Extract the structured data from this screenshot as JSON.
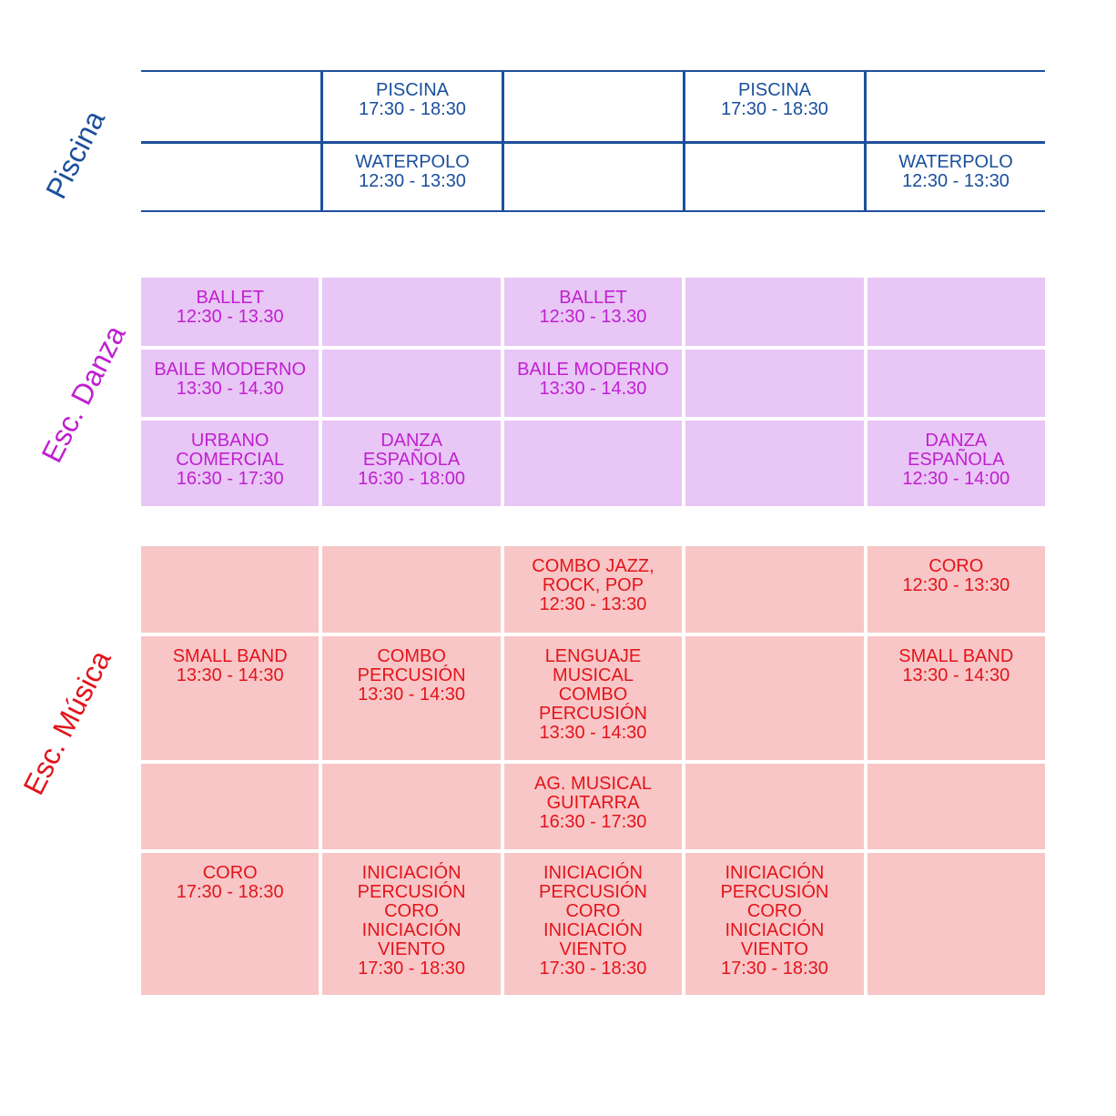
{
  "sections": [
    {
      "name": "Piscina",
      "rows": [
        [
          [],
          [
            "PISCINA",
            "17:30 - 18:30"
          ],
          [],
          [
            "PISCINA",
            "17:30 - 18:30"
          ],
          []
        ],
        [
          [],
          [
            "WATERPOLO",
            "12:30 - 13:30"
          ],
          [],
          [],
          [
            "WATERPOLO",
            "12:30 - 13:30"
          ]
        ]
      ]
    },
    {
      "name": "Esc. Danza",
      "rows": [
        [
          [
            "BALLET",
            "12:30 - 13.30"
          ],
          [],
          [
            "BALLET",
            "12:30 - 13.30"
          ],
          [],
          []
        ],
        [
          [
            "BAILE MODERNO",
            "13:30 - 14.30"
          ],
          [],
          [
            "BAILE MODERNO",
            "13:30 - 14.30"
          ],
          [],
          []
        ],
        [
          [
            "URBANO",
            "COMERCIAL",
            "16:30 - 17:30"
          ],
          [
            "DANZA",
            "ESPAÑOLA",
            "16:30 - 18:00"
          ],
          [],
          [],
          [
            "DANZA",
            "ESPAÑOLA",
            "12:30 - 14:00"
          ]
        ]
      ]
    },
    {
      "name": "Esc. Música",
      "rows": [
        [
          [],
          [],
          [
            "COMBO JAZZ,",
            "ROCK, POP",
            "12:30 - 13:30"
          ],
          [],
          [
            "CORO",
            "12:30 - 13:30"
          ]
        ],
        [
          [
            "SMALL BAND",
            "13:30 - 14:30"
          ],
          [
            "COMBO",
            "PERCUSIÓN",
            "13:30 - 14:30"
          ],
          [
            "LENGUAJE",
            "MUSICAL",
            "COMBO",
            "PERCUSIÓN",
            "13:30 - 14:30"
          ],
          [],
          [
            "SMALL BAND",
            "13:30 - 14:30"
          ]
        ],
        [
          [],
          [],
          [
            "AG. MUSICAL",
            "GUITARRA",
            "16:30 - 17:30"
          ],
          [],
          []
        ],
        [
          [
            "CORO",
            "17:30 - 18:30"
          ],
          [
            "INICIACIÓN",
            "PERCUSIÓN",
            "CORO",
            "INICIACIÓN",
            "VIENTO",
            "17:30 - 18:30"
          ],
          [
            "INICIACIÓN",
            "PERCUSIÓN",
            "CORO",
            "INICIACIÓN",
            "VIENTO",
            "17:30 - 18:30"
          ],
          [
            "INICIACIÓN",
            "PERCUSIÓN",
            "CORO",
            "INICIACIÓN",
            "VIENTO",
            "17:30 - 18:30"
          ],
          []
        ]
      ]
    }
  ],
  "colors": {
    "piscina": "#1e4f9c",
    "danza_text": "#c020d0",
    "danza_bg": "#e8c6f5",
    "musica_text": "#e3141b",
    "musica_bg": "#f8c6c6"
  }
}
